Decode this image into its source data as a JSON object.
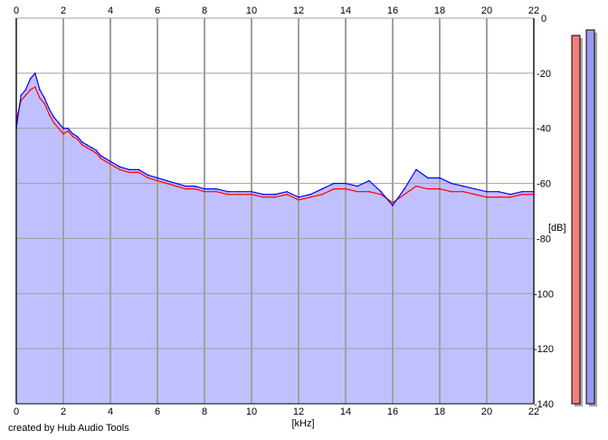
{
  "credit": "created by Hub Audio Tools",
  "chart_data": {
    "type": "area",
    "xlabel": "[kHz]",
    "ylabel": "[dB]",
    "xlim": [
      0,
      22
    ],
    "ylim": [
      -140,
      0
    ],
    "x_ticks": [
      0,
      2,
      4,
      6,
      8,
      10,
      12,
      14,
      16,
      18,
      20,
      22
    ],
    "y_ticks": [
      0,
      -20,
      -40,
      -60,
      -80,
      -100,
      -120,
      -140
    ],
    "y_tick_labels": [
      "0",
      "-20",
      "-40",
      "-60",
      "-80",
      "-100",
      "-120",
      "-140"
    ],
    "grid": true,
    "series": [
      {
        "color": "#ff0000",
        "x": [
          0.0,
          0.2,
          0.4,
          0.6,
          0.8,
          1.0,
          1.2,
          1.4,
          1.6,
          1.8,
          2.0,
          2.2,
          2.4,
          2.6,
          2.8,
          3.0,
          3.2,
          3.4,
          3.6,
          3.8,
          4.0,
          4.4,
          4.8,
          5.2,
          5.6,
          6.0,
          6.4,
          6.8,
          7.2,
          7.6,
          8.0,
          8.5,
          9.0,
          9.5,
          10.0,
          10.5,
          11.0,
          11.5,
          12.0,
          12.5,
          13.0,
          13.5,
          14.0,
          14.5,
          15.0,
          15.5,
          16.0,
          16.5,
          17.0,
          17.5,
          18.0,
          18.5,
          19.0,
          19.5,
          20.0,
          20.5,
          21.0,
          21.5,
          22.0
        ],
        "values": [
          -37,
          -30,
          -28,
          -26,
          -25,
          -29,
          -31,
          -35,
          -38,
          -40,
          -42,
          -41,
          -43,
          -44,
          -46,
          -47,
          -48,
          -49,
          -51,
          -52,
          -53,
          -55,
          -56,
          -56,
          -58,
          -59,
          -60,
          -61,
          -62,
          -62,
          -63,
          -63,
          -64,
          -64,
          -64,
          -65,
          -65,
          -64,
          -66,
          -65,
          -64,
          -62,
          -62,
          -63,
          -63,
          -64,
          -67,
          -64,
          -61,
          -62,
          -62,
          -63,
          -63,
          -64,
          -65,
          -65,
          -65,
          -64,
          -64
        ]
      },
      {
        "color": "#0000ff",
        "x": [
          0.0,
          0.2,
          0.4,
          0.6,
          0.8,
          1.0,
          1.2,
          1.4,
          1.6,
          1.8,
          2.0,
          2.2,
          2.4,
          2.6,
          2.8,
          3.0,
          3.2,
          3.4,
          3.6,
          3.8,
          4.0,
          4.4,
          4.8,
          5.2,
          5.6,
          6.0,
          6.4,
          6.8,
          7.2,
          7.6,
          8.0,
          8.5,
          9.0,
          9.5,
          10.0,
          10.5,
          11.0,
          11.5,
          12.0,
          12.5,
          13.0,
          13.5,
          14.0,
          14.5,
          15.0,
          15.5,
          16.0,
          16.5,
          17.0,
          17.5,
          18.0,
          18.5,
          19.0,
          19.5,
          20.0,
          20.5,
          21.0,
          21.5,
          22.0
        ],
        "values": [
          -40,
          -28,
          -26,
          -22,
          -20,
          -26,
          -29,
          -33,
          -36,
          -38,
          -40,
          -40,
          -42,
          -43,
          -45,
          -46,
          -47,
          -48,
          -50,
          -51,
          -52,
          -54,
          -55,
          -55,
          -57,
          -58,
          -59,
          -60,
          -61,
          -61,
          -62,
          -62,
          -63,
          -63,
          -63,
          -64,
          -64,
          -63,
          -65,
          -64,
          -62,
          -60,
          -60,
          -61,
          -59,
          -63,
          -68,
          -62,
          -55,
          -58,
          -58,
          -60,
          -61,
          -62,
          -63,
          -63,
          -64,
          -63,
          -63
        ]
      }
    ],
    "fill_color": "#c0c0ff",
    "level_meters": [
      {
        "channel": "left",
        "color": "#f08080",
        "level_db": -3
      },
      {
        "channel": "right",
        "color": "#9a9af0",
        "level_db": -1
      }
    ]
  }
}
